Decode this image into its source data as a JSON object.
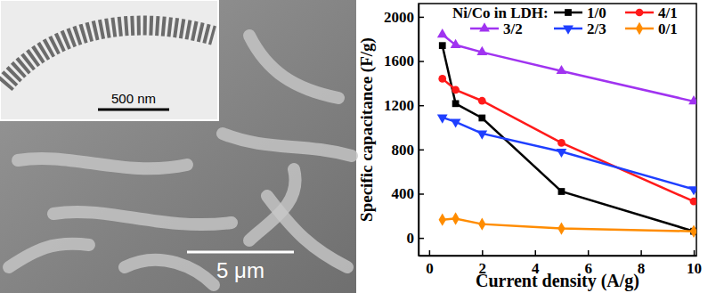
{
  "chart_data": {
    "type": "line",
    "xlabel": "Current density (A/g)",
    "ylabel": "Specific capacitance (F/g)",
    "legend_title": "Ni/Co in LDH:",
    "legend": "upper right",
    "x": [
      0.5,
      1,
      2,
      5,
      10
    ],
    "xlim": [
      -0.4,
      10.1
    ],
    "xticks": [
      0,
      2,
      4,
      6,
      8,
      10
    ],
    "ylim": [
      -160,
      2120
    ],
    "yticks": [
      0,
      400,
      800,
      1200,
      1600,
      2000
    ],
    "series": [
      {
        "name": "1/0",
        "color": "#000000",
        "marker": "square",
        "values": [
          1740,
          1215,
          1085,
          420,
          60
        ]
      },
      {
        "name": "4/1",
        "color": "#ff1a1a",
        "marker": "circle",
        "values": [
          1440,
          1340,
          1240,
          860,
          330
        ]
      },
      {
        "name": "3/2",
        "color": "#a033f0",
        "marker": "triangle-up",
        "values": [
          1840,
          1745,
          1680,
          1510,
          1235
        ]
      },
      {
        "name": "2/3",
        "color": "#1f3fff",
        "marker": "triangle-down",
        "values": [
          1090,
          1050,
          945,
          780,
          440
        ]
      },
      {
        "name": "0/1",
        "color": "#ff8c00",
        "marker": "diamond",
        "values": [
          165,
          175,
          125,
          85,
          60
        ]
      }
    ]
  },
  "micrograph": {
    "scale_bar": "5 μm",
    "inset_scale_bar": "500 nm"
  }
}
